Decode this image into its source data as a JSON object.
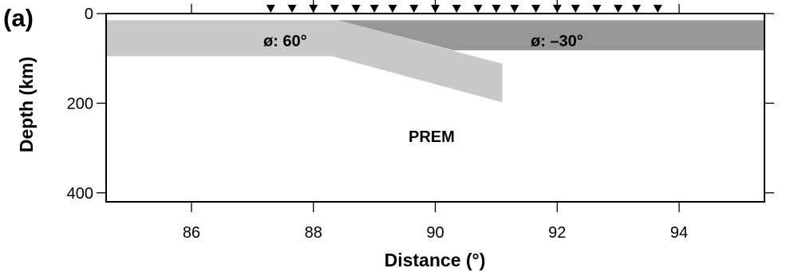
{
  "panel_label": "(a)",
  "axes": {
    "xlabel": "Distance (°)",
    "ylabel": "Depth (km)",
    "xlim": [
      84.6,
      95.4
    ],
    "ylim": [
      0,
      420
    ],
    "x_ticks": [
      86,
      88,
      90,
      92,
      94
    ],
    "x_tick_labels": [
      "86",
      "88",
      "90",
      "92",
      "94"
    ],
    "y_ticks": [
      0,
      200,
      400
    ],
    "y_tick_labels": [
      "0",
      "200",
      "400"
    ]
  },
  "stations": {
    "x_deg": [
      87.3,
      87.65,
      88.0,
      88.35,
      88.7,
      89.0,
      89.3,
      89.65,
      90.0,
      90.35,
      90.7,
      91.0,
      91.3,
      91.65,
      92.0,
      92.3,
      92.65,
      93.0,
      93.3,
      93.65
    ],
    "flagged_x_deg": [
      88.0,
      90.0,
      92.0
    ]
  },
  "layers": [
    {
      "name": "slab-right",
      "fill": "#979797",
      "polygon_deg_km": [
        [
          88.4,
          15
        ],
        [
          95.4,
          15
        ],
        [
          95.4,
          82
        ],
        [
          90.3,
          82
        ]
      ]
    },
    {
      "name": "slab-left",
      "fill": "#c8c8c8",
      "polygon_deg_km": [
        [
          84.6,
          15
        ],
        [
          88.4,
          15
        ],
        [
          91.1,
          112
        ],
        [
          91.1,
          198
        ],
        [
          88.3,
          95
        ],
        [
          84.6,
          95
        ]
      ]
    }
  ],
  "labels": {
    "phi_left": "ø: 60°",
    "phi_right": "ø: –30°",
    "model": "PREM"
  },
  "colors": {
    "frame": "#000000",
    "light_gray": "#c8c8c8",
    "dark_gray": "#979797"
  }
}
